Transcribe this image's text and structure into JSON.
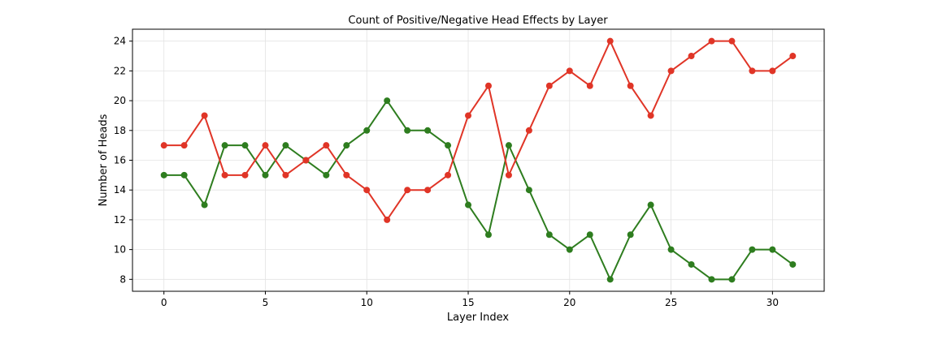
{
  "chart_data": {
    "type": "line",
    "title": "Count of Positive/Negative Head Effects by Layer",
    "xlabel": "Layer Index",
    "ylabel": "Number of Heads",
    "xlim": [
      -1.55,
      32.55
    ],
    "ylim": [
      7.2,
      24.8
    ],
    "xticks": [
      0,
      5,
      10,
      15,
      20,
      25,
      30
    ],
    "yticks": [
      8,
      10,
      12,
      14,
      16,
      18,
      20,
      22,
      24
    ],
    "grid": true,
    "x": [
      0,
      1,
      2,
      3,
      4,
      5,
      6,
      7,
      8,
      9,
      10,
      11,
      12,
      13,
      14,
      15,
      16,
      17,
      18,
      19,
      20,
      21,
      22,
      23,
      24,
      25,
      26,
      27,
      28,
      29,
      30,
      31
    ],
    "series": [
      {
        "color": "#2e7d1f",
        "values": [
          15,
          15,
          13,
          17,
          17,
          15,
          17,
          16,
          15,
          17,
          18,
          20,
          18,
          18,
          17,
          13,
          11,
          17,
          14,
          11,
          10,
          11,
          8,
          11,
          13,
          10,
          9,
          8,
          8,
          10,
          10,
          9
        ]
      },
      {
        "color": "#e03527",
        "values": [
          17,
          17,
          19,
          15,
          15,
          17,
          15,
          16,
          17,
          15,
          14,
          12,
          14,
          14,
          15,
          19,
          21,
          15,
          18,
          21,
          22,
          21,
          24,
          21,
          19,
          22,
          23,
          24,
          24,
          22,
          22,
          23
        ]
      }
    ]
  }
}
